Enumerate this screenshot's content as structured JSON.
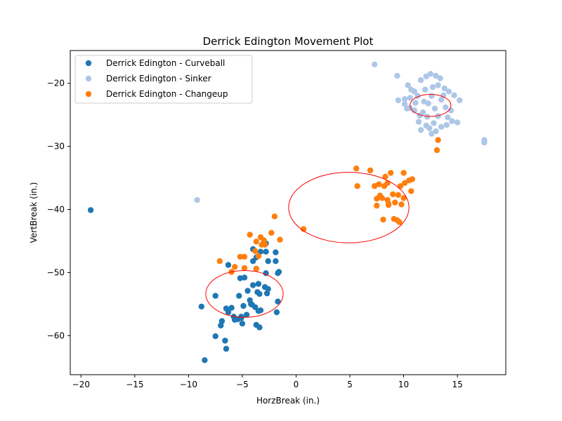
{
  "chart_data": {
    "type": "scatter",
    "title": "Derrick Edington Movement Plot",
    "xlabel": "HorzBreak (in.)",
    "ylabel": "VertBreak (in.)",
    "xlim": [
      -21,
      19.5
    ],
    "ylim": [
      -66.2,
      -14.8
    ],
    "xticks": [
      -20,
      -15,
      -10,
      -5,
      0,
      5,
      10,
      15
    ],
    "yticks": [
      -60,
      -50,
      -40,
      -30,
      -20
    ],
    "grid": false,
    "legend_position": "upper-left",
    "series": [
      {
        "name": "Derrick Edington - Curveball",
        "color": "#1f77b4",
        "points": [
          [
            -19.1,
            -40.1
          ],
          [
            -4.0,
            -46.3
          ],
          [
            -3.7,
            -47.6
          ],
          [
            -4.0,
            -48.2
          ],
          [
            -3.3,
            -46.7
          ],
          [
            -2.8,
            -46.7
          ],
          [
            -1.9,
            -46.8
          ],
          [
            -2.8,
            -45.4
          ],
          [
            -2.6,
            -48.2
          ],
          [
            -1.9,
            -48.2
          ],
          [
            -1.6,
            -49.9
          ],
          [
            -1.7,
            -50.1
          ],
          [
            -2.8,
            -50.1
          ],
          [
            -6.3,
            -48.8
          ],
          [
            -5.2,
            -50.9
          ],
          [
            -4.8,
            -50.8
          ],
          [
            -4.0,
            -52.0
          ],
          [
            -3.5,
            -51.8
          ],
          [
            -4.5,
            -52.9
          ],
          [
            -3.6,
            -53.1
          ],
          [
            -2.9,
            -52.3
          ],
          [
            -2.6,
            -52.6
          ],
          [
            -2.7,
            -53.3
          ],
          [
            -3.4,
            -53.4
          ],
          [
            -4.3,
            -54.4
          ],
          [
            -4.9,
            -55.3
          ],
          [
            -4.1,
            -55.1
          ],
          [
            -3.8,
            -55.5
          ],
          [
            -5.3,
            -53.7
          ],
          [
            -7.5,
            -53.7
          ],
          [
            -8.8,
            -55.4
          ],
          [
            -6.5,
            -55.7
          ],
          [
            -6.0,
            -55.6
          ],
          [
            -6.3,
            -56.3
          ],
          [
            -5.8,
            -57.0
          ],
          [
            -5.4,
            -57.4
          ],
          [
            -5.1,
            -57.2
          ],
          [
            -4.6,
            -56.7
          ],
          [
            -5.7,
            -57.5
          ],
          [
            -6.9,
            -57.7
          ],
          [
            -5.0,
            -58.1
          ],
          [
            -3.5,
            -56.1
          ],
          [
            -3.3,
            -56.0
          ],
          [
            -1.8,
            -56.3
          ],
          [
            -1.7,
            -54.6
          ],
          [
            -3.7,
            -58.3
          ],
          [
            -3.4,
            -58.7
          ],
          [
            -7.0,
            -58.4
          ],
          [
            -7.5,
            -60.1
          ],
          [
            -6.6,
            -60.8
          ],
          [
            -6.5,
            -62.1
          ],
          [
            -8.5,
            -63.9
          ],
          [
            -5.1,
            -57.0
          ],
          [
            -4.2,
            -55.0
          ]
        ]
      },
      {
        "name": "Derrick Edington - Sinker",
        "color": "#aec7e8",
        "points": [
          [
            7.3,
            -17.0
          ],
          [
            9.4,
            -18.8
          ],
          [
            11.0,
            -21.3
          ],
          [
            11.6,
            -19.5
          ],
          [
            12.1,
            -18.9
          ],
          [
            12.5,
            -18.5
          ],
          [
            13.0,
            -18.8
          ],
          [
            13.4,
            -19.2
          ],
          [
            10.4,
            -20.3
          ],
          [
            10.7,
            -21.0
          ],
          [
            10.1,
            -22.5
          ],
          [
            10.6,
            -22.3
          ],
          [
            9.5,
            -22.7
          ],
          [
            10.1,
            -23.3
          ],
          [
            10.6,
            -23.9
          ],
          [
            11.0,
            -24.3
          ],
          [
            11.5,
            -25.1
          ],
          [
            11.4,
            -26.1
          ],
          [
            12.1,
            -26.7
          ],
          [
            11.6,
            -27.4
          ],
          [
            12.4,
            -27.1
          ],
          [
            12.6,
            -28.0
          ],
          [
            13.0,
            -27.6
          ],
          [
            13.5,
            -26.9
          ],
          [
            14.0,
            -26.6
          ],
          [
            14.5,
            -26.0
          ],
          [
            15.0,
            -26.2
          ],
          [
            15.2,
            -22.7
          ],
          [
            14.7,
            -21.9
          ],
          [
            14.2,
            -21.3
          ],
          [
            13.8,
            -20.8
          ],
          [
            13.2,
            -20.3
          ],
          [
            12.7,
            -20.6
          ],
          [
            12.0,
            -21.0
          ],
          [
            11.3,
            -22.0
          ],
          [
            11.1,
            -23.1
          ],
          [
            11.8,
            -24.6
          ],
          [
            12.2,
            -25.3
          ],
          [
            12.9,
            -24.0
          ],
          [
            13.5,
            -22.6
          ],
          [
            13.9,
            -23.8
          ],
          [
            14.4,
            -24.3
          ],
          [
            14.1,
            -25.4
          ],
          [
            12.6,
            -22.0
          ],
          [
            12.3,
            -23.2
          ],
          [
            13.2,
            -25.2
          ],
          [
            11.9,
            -22.9
          ],
          [
            13.7,
            -21.9
          ],
          [
            12.8,
            -26.3
          ],
          [
            10.3,
            -24.0
          ],
          [
            17.5,
            -29.0
          ],
          [
            17.5,
            -29.4
          ],
          [
            -9.2,
            -38.5
          ]
        ]
      },
      {
        "name": "Derrick Edington - Changeup",
        "color": "#ff7f0e",
        "points": [
          [
            5.6,
            -33.5
          ],
          [
            6.9,
            -33.8
          ],
          [
            8.3,
            -34.8
          ],
          [
            8.8,
            -34.2
          ],
          [
            10.0,
            -34.2
          ],
          [
            10.8,
            -35.2
          ],
          [
            10.5,
            -35.4
          ],
          [
            5.7,
            -36.3
          ],
          [
            7.3,
            -36.3
          ],
          [
            7.7,
            -36.0
          ],
          [
            8.5,
            -35.8
          ],
          [
            8.2,
            -36.3
          ],
          [
            9.7,
            -36.3
          ],
          [
            10.1,
            -35.8
          ],
          [
            10.7,
            -37.1
          ],
          [
            7.8,
            -37.8
          ],
          [
            8.0,
            -38.2
          ],
          [
            7.5,
            -38.3
          ],
          [
            8.5,
            -38.5
          ],
          [
            9.0,
            -37.6
          ],
          [
            9.5,
            -37.7
          ],
          [
            10.0,
            -38.2
          ],
          [
            8.6,
            -39.1
          ],
          [
            9.2,
            -38.9
          ],
          [
            9.8,
            -39.2
          ],
          [
            7.5,
            -39.4
          ],
          [
            8.6,
            -39.3
          ],
          [
            8.1,
            -41.6
          ],
          [
            9.1,
            -41.5
          ],
          [
            9.4,
            -41.7
          ],
          [
            9.6,
            -42.0
          ],
          [
            13.2,
            -29.0
          ],
          [
            13.1,
            -30.6
          ],
          [
            0.7,
            -43.1
          ],
          [
            -2.0,
            -41.1
          ],
          [
            -4.3,
            -44.0
          ],
          [
            -3.3,
            -44.4
          ],
          [
            -3.0,
            -44.9
          ],
          [
            -2.3,
            -43.7
          ],
          [
            -1.5,
            -44.8
          ],
          [
            -3.7,
            -45.1
          ],
          [
            -3.2,
            -45.6
          ],
          [
            -3.8,
            -46.6
          ],
          [
            -3.5,
            -47.4
          ],
          [
            -4.8,
            -47.5
          ],
          [
            -5.2,
            -47.5
          ],
          [
            -7.1,
            -48.2
          ],
          [
            -5.7,
            -49.1
          ],
          [
            -6.0,
            -49.9
          ],
          [
            -4.8,
            -49.3
          ],
          [
            -3.7,
            -49.4
          ],
          [
            -2.9,
            -45.6
          ]
        ]
      }
    ],
    "ellipses": [
      {
        "color": "#ff0000",
        "center": [
          12.5,
          -23.5
        ],
        "radii": [
          1.9,
          1.75
        ]
      },
      {
        "color": "#ff0000",
        "center": [
          4.9,
          -39.7
        ],
        "radii": [
          5.6,
          5.6
        ]
      },
      {
        "color": "#ff0000",
        "center": [
          -4.8,
          -53.4
        ],
        "radii": [
          3.6,
          3.7
        ]
      }
    ]
  }
}
